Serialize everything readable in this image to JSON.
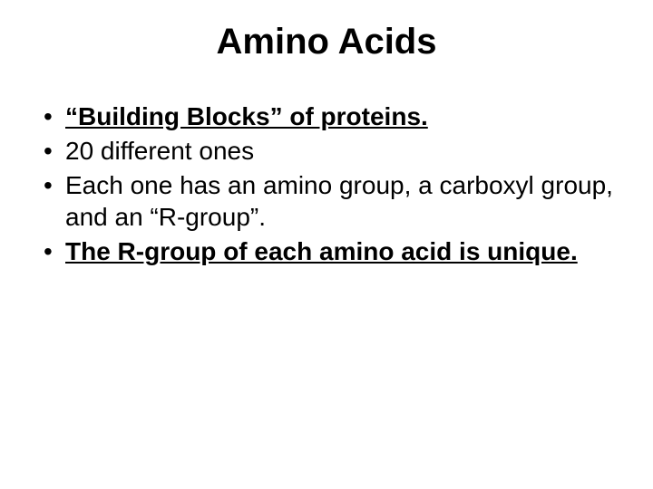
{
  "slide": {
    "title": "Amino Acids",
    "title_fontsize": 40,
    "body_fontsize": 28,
    "line_height": 1.28,
    "text_color": "#000000",
    "background_color": "#ffffff",
    "bullets": [
      {
        "text": "“Building Blocks” of proteins.",
        "bold": true,
        "underline": true
      },
      {
        "text": "20 different ones",
        "bold": false,
        "underline": false
      },
      {
        "text": "Each one has an amino group, a carboxyl group, and an “R-group”.",
        "bold": false,
        "underline": false
      },
      {
        "text": "The R-group of each amino acid is unique.",
        "bold": true,
        "underline": true
      }
    ]
  }
}
